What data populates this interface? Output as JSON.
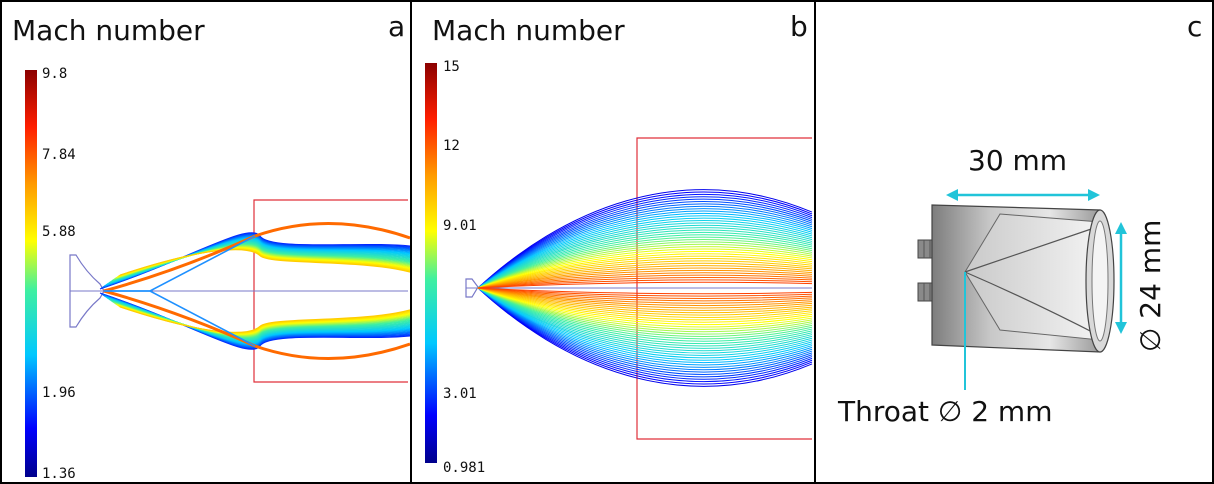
{
  "panels": [
    {
      "letter": "a",
      "title": "Mach number",
      "colorbar": {
        "max": "9.8",
        "ticks": [
          "7.84",
          "5.88",
          "1.96"
        ],
        "min": "1.36"
      }
    },
    {
      "letter": "b",
      "title": "Mach number",
      "colorbar": {
        "max": "15",
        "ticks": [
          "12",
          "9.01",
          "3.01"
        ],
        "min": "0.981"
      }
    },
    {
      "letter": "c",
      "dimensions": {
        "length": "30 mm",
        "diameter": "∅ 24 mm",
        "throat": "Throat ∅ 2 mm"
      }
    }
  ],
  "colors": {
    "frame": "#000000",
    "boundary_red": "#e0303a",
    "dimension_cyan": "#21c4d9",
    "geometry_blue": "#7878c8"
  }
}
